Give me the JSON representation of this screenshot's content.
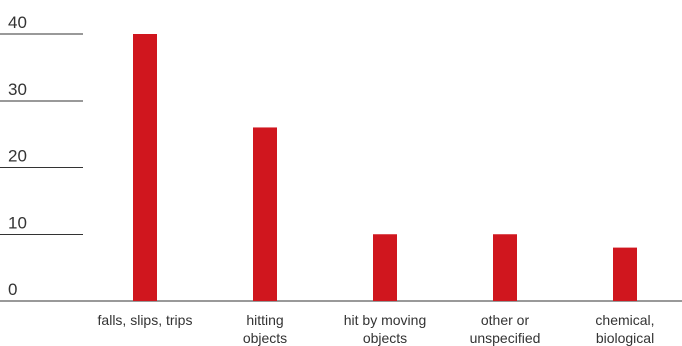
{
  "chart_data": {
    "type": "bar",
    "categories": [
      [
        "falls, slips, trips"
      ],
      [
        "hitting",
        "objects"
      ],
      [
        "hit by moving",
        "objects"
      ],
      [
        "other or",
        "unspecified"
      ],
      [
        "chemical,",
        "biological"
      ]
    ],
    "values": [
      40,
      26,
      10,
      10,
      8
    ],
    "yticks": [
      0,
      10,
      20,
      30,
      40
    ],
    "ylim": [
      0,
      40
    ],
    "grid": true,
    "legend": "none",
    "title": "",
    "xlabel": "",
    "ylabel": "",
    "colors": {
      "bar": "#d0161e",
      "grid": "#333333",
      "text": "#333333"
    }
  }
}
